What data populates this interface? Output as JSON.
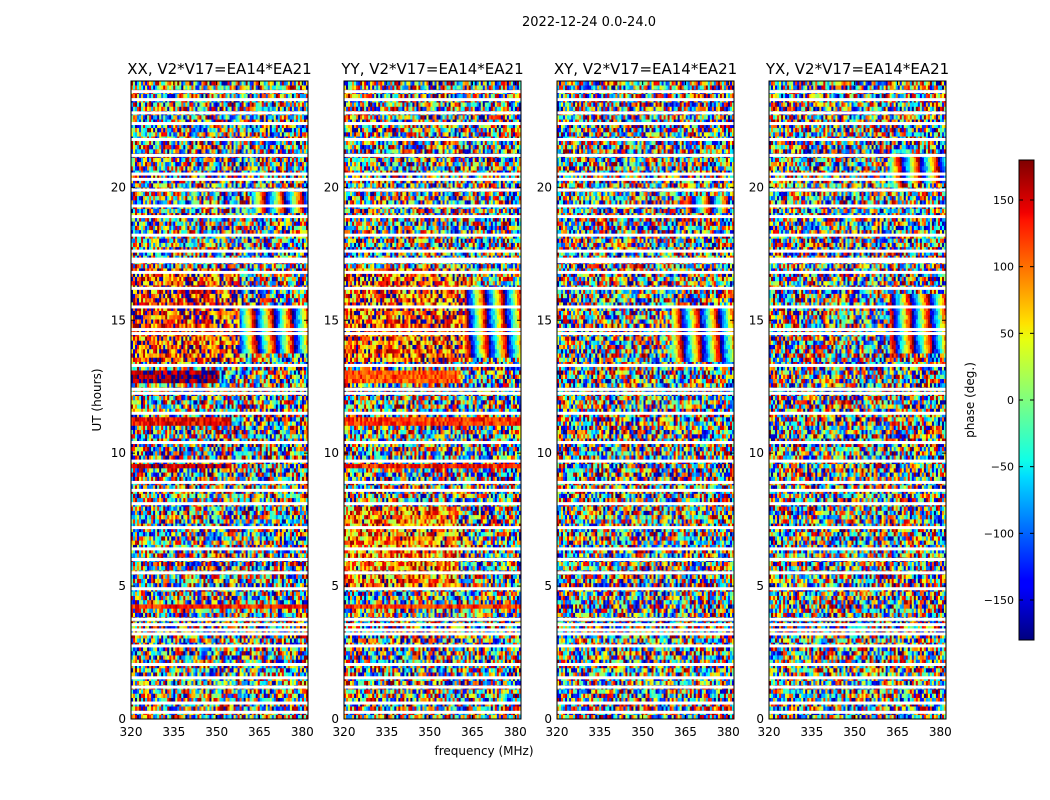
{
  "chart_data": {
    "type": "heatmap",
    "title": "2022-12-24 0.0-24.0",
    "xlabel": "frequency (MHz)",
    "ylabel": "UT (hours)",
    "xlim": [
      320,
      382
    ],
    "ylim": [
      0,
      24
    ],
    "xticks": [
      320,
      335,
      350,
      365,
      380
    ],
    "yticks": [
      0,
      5,
      10,
      15,
      20
    ],
    "panels": [
      {
        "name": "XX",
        "title": "XX, V2*V17=EA14*EA21",
        "ylabel_shown": true
      },
      {
        "name": "YY",
        "title": "YY, V2*V17=EA14*EA21",
        "ylabel_shown": false
      },
      {
        "name": "XY",
        "title": "XY, V2*V17=EA14*EA21",
        "ylabel_shown": false
      },
      {
        "name": "YX",
        "title": "YX, V2*V17=EA14*EA21",
        "ylabel_shown": false
      }
    ],
    "colorbar": {
      "label": "phase (deg.)",
      "range": [
        -180,
        180
      ],
      "ticks": [
        -150,
        -100,
        -50,
        0,
        50,
        100,
        150
      ],
      "colormap": "jet"
    },
    "flagged_times_hours": [
      0.25,
      0.6,
      1.2,
      1.55,
      2.05,
      2.75,
      3.2,
      3.35,
      3.55,
      3.75,
      4.9,
      5.5,
      6.0,
      6.4,
      7.2,
      8.1,
      8.6,
      8.9,
      9.7,
      10.4,
      11.5,
      12.25,
      12.4,
      13.3,
      14.5,
      14.65,
      15.5,
      16.2,
      16.8,
      17.2,
      17.3,
      17.6,
      18.2,
      18.9,
      19.3,
      19.9,
      20.3,
      20.5,
      21.2,
      21.8,
      22.4,
      22.8,
      23.3,
      23.6
    ],
    "coherent_features": [
      {
        "panel": "XX",
        "t_start": 12.6,
        "t_end": 13.1,
        "f_start": 320,
        "f_end": 350,
        "phase_deg": 170
      },
      {
        "panel": "XX",
        "t_start": 11.1,
        "t_end": 11.3,
        "f_start": 320,
        "f_end": 355,
        "phase_deg": 140
      },
      {
        "panel": "XX",
        "t_start": 9.45,
        "t_end": 9.65,
        "f_start": 320,
        "f_end": 355,
        "phase_deg": 150
      },
      {
        "panel": "XX",
        "t_start": 4.1,
        "t_end": 4.3,
        "f_start": 320,
        "f_end": 382,
        "phase_deg": 130
      },
      {
        "panel": "XX",
        "t_start": 13.5,
        "t_end": 16.9,
        "f_start": 320,
        "f_end": 358,
        "phase_deg": 120
      },
      {
        "panel": "YY",
        "t_start": 12.6,
        "t_end": 13.1,
        "f_start": 320,
        "f_end": 360,
        "phase_deg": 110
      },
      {
        "panel": "YY",
        "t_start": 11.05,
        "t_end": 11.3,
        "f_start": 320,
        "f_end": 382,
        "phase_deg": 120
      },
      {
        "panel": "YY",
        "t_start": 9.4,
        "t_end": 9.65,
        "f_start": 320,
        "f_end": 382,
        "phase_deg": 125
      },
      {
        "panel": "YY",
        "t_start": 4.1,
        "t_end": 4.3,
        "f_start": 320,
        "f_end": 382,
        "phase_deg": 120
      },
      {
        "panel": "YY",
        "t_start": 13.5,
        "t_end": 16.9,
        "f_start": 320,
        "f_end": 362,
        "phase_deg": 110
      },
      {
        "panel": "YY",
        "t_start": 5.0,
        "t_end": 8.0,
        "f_start": 320,
        "f_end": 360,
        "phase_deg": 90
      }
    ],
    "fringe_regions": [
      {
        "panel": "XX",
        "t_start": 13.8,
        "t_end": 15.6,
        "f_start": 355,
        "f_end": 382
      },
      {
        "panel": "YY",
        "t_start": 13.6,
        "t_end": 16.2,
        "f_start": 360,
        "f_end": 382
      },
      {
        "panel": "XY",
        "t_start": 13.4,
        "t_end": 15.6,
        "f_start": 360,
        "f_end": 382
      },
      {
        "panel": "YX",
        "t_start": 13.8,
        "t_end": 16.0,
        "f_start": 362,
        "f_end": 382
      },
      {
        "panel": "XX",
        "t_start": 19.0,
        "t_end": 19.8,
        "f_start": 362,
        "f_end": 382
      },
      {
        "panel": "XY",
        "t_start": 19.0,
        "t_end": 19.6,
        "f_start": 365,
        "f_end": 380
      },
      {
        "panel": "YX",
        "t_start": 20.2,
        "t_end": 21.2,
        "f_start": 362,
        "f_end": 382
      }
    ]
  }
}
